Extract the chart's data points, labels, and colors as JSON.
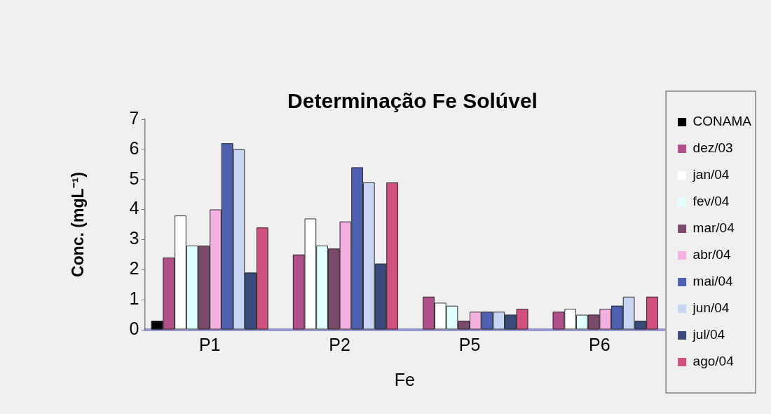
{
  "chart_data": {
    "type": "bar",
    "title": "Determinação Fe Solúvel",
    "xlabel": "Fe",
    "ylabel": "Conc. (mgL⁻¹)",
    "categories": [
      "P1",
      "P2",
      "P5",
      "P6"
    ],
    "series": [
      {
        "name": "CONAMA",
        "color": "#000000",
        "values": [
          0.3,
          null,
          null,
          null
        ]
      },
      {
        "name": "dez/03",
        "color": "#b0508a",
        "values": [
          2.4,
          2.5,
          1.1,
          0.6
        ]
      },
      {
        "name": "jan/04",
        "color": "#ffffff",
        "values": [
          3.8,
          3.7,
          0.9,
          0.7
        ]
      },
      {
        "name": "fev/04",
        "color": "#e0ffff",
        "values": [
          2.8,
          2.8,
          0.8,
          0.5
        ]
      },
      {
        "name": "mar/04",
        "color": "#7a4a6a",
        "values": [
          2.8,
          2.7,
          0.3,
          0.5
        ]
      },
      {
        "name": "abr/04",
        "color": "#f4b0e0",
        "values": [
          4.0,
          3.6,
          0.6,
          0.7
        ]
      },
      {
        "name": "mai/04",
        "color": "#5060b0",
        "values": [
          6.2,
          5.4,
          0.6,
          0.8
        ]
      },
      {
        "name": "jun/04",
        "color": "#c8d4f4",
        "values": [
          6.0,
          4.9,
          0.6,
          1.1
        ]
      },
      {
        "name": "jul/04",
        "color": "#3a4a7a",
        "values": [
          1.9,
          2.2,
          0.5,
          0.3
        ]
      },
      {
        "name": "ago/04",
        "color": "#d05080",
        "values": [
          3.4,
          4.9,
          0.7,
          1.1
        ]
      }
    ],
    "ylim": [
      0,
      7
    ],
    "yticks": [
      0,
      1,
      2,
      3,
      4,
      5,
      6,
      7
    ],
    "grid": false,
    "legend": "right"
  }
}
